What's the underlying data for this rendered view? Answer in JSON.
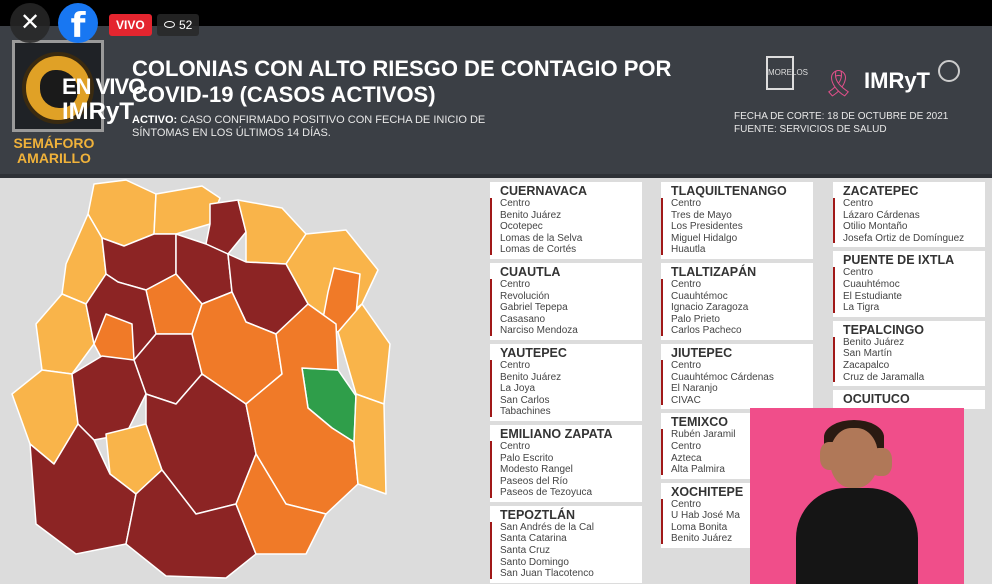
{
  "overlay": {
    "close_symbol": "✕",
    "facebook_symbol": "f",
    "live_label": "VIVO",
    "viewer_icon": "eye-icon",
    "viewer_count": "52"
  },
  "header": {
    "watermark_en_vivo": "EN VIVO",
    "watermark_imryt": "IMRyT",
    "semaforo_line1": "SEMÁFORO",
    "semaforo_line2": "AMARILLO",
    "title_line1": "COLONIAS CON ALTO RIESGO DE CONTAGIO POR",
    "title_line2": "COVID-19 (CASOS ACTIVOS)",
    "definition_term": "ACTIVO:",
    "definition_text": "CASO CONFIRMADO POSITIVO CON FECHA DE INICIO DE SÍNTOMAS EN LOS ÚLTIMOS 14 DÍAS.",
    "logo_imryt": "IMRyT",
    "logo_morelos": "MORELOS",
    "fecha_corte": "FECHA DE CORTE: 18 DE OCTUBRE DE 2021",
    "fuente": "FUENTE: SERVICIOS DE SALUD"
  },
  "map_colors": {
    "dark_red": "#8c2424",
    "orange": "#f07a28",
    "light_orange": "#f9b44a",
    "green": "#2f9e4a",
    "border": "#ffffff"
  },
  "columns": [
    [
      {
        "name": "CUERNAVACA",
        "colonias": [
          "Centro",
          "Benito Juárez",
          "Ocotepec",
          "Lomas de la Selva",
          "Lomas de Cortés"
        ]
      },
      {
        "name": "CUAUTLA",
        "colonias": [
          "Centro",
          "Revolución",
          "Gabriel Tepepa",
          "Casasano",
          "Narciso Mendoza"
        ]
      },
      {
        "name": "YAUTEPEC",
        "colonias": [
          "Centro",
          "Benito Juárez",
          "La Joya",
          "San Carlos",
          "Tabachines"
        ]
      },
      {
        "name": "EMILIANO ZAPATA",
        "colonias": [
          "Centro",
          "Palo Escrito",
          "Modesto Rangel",
          "Paseos del Río",
          "Paseos de Tezoyuca"
        ]
      },
      {
        "name": "TEPOZTLÁN",
        "colonias": [
          "San Andrés de la Cal",
          "Santa Catarina",
          "Santa Cruz",
          "Santo Domingo",
          "San Juan Tlacotenco"
        ]
      }
    ],
    [
      {
        "name": "TLAQUILTENANGO",
        "colonias": [
          "Centro",
          "Tres de Mayo",
          "Los Presidentes",
          "Miguel Hidalgo",
          "Huautla"
        ]
      },
      {
        "name": "TLALTIZAPÁN",
        "colonias": [
          "Centro",
          "Cuauhtémoc",
          "Ignacio Zaragoza",
          "Palo Prieto",
          "Carlos Pacheco"
        ]
      },
      {
        "name": "JIUTEPEC",
        "colonias": [
          "Centro",
          "Cuauhtémoc Cárdenas",
          "El Naranjo",
          "CIVAC"
        ]
      },
      {
        "name": "TEMIXCO",
        "colonias": [
          "Rubén Jaramil",
          "Centro",
          "Azteca",
          "Alta Palmira"
        ]
      },
      {
        "name": "XOCHITEPE",
        "colonias": [
          "Centro",
          "U Hab José Ma",
          "Loma Bonita",
          "Benito Juárez"
        ]
      }
    ],
    [
      {
        "name": "ZACATEPEC",
        "colonias": [
          "Centro",
          "Lázaro Cárdenas",
          "Otilio Montaño",
          "Josefa Ortiz de Domínguez"
        ]
      },
      {
        "name": "PUENTE DE IXTLA",
        "colonias": [
          "Centro",
          "Cuauhtémoc",
          "El Estudiante",
          "La Tigra"
        ]
      },
      {
        "name": "TEPALCINGO",
        "colonias": [
          "Benito Juárez",
          "San Martín",
          "Zacapalco",
          "Cruz de Jaramalla"
        ]
      },
      {
        "name": "OCUITUCO",
        "colonias": []
      }
    ]
  ]
}
